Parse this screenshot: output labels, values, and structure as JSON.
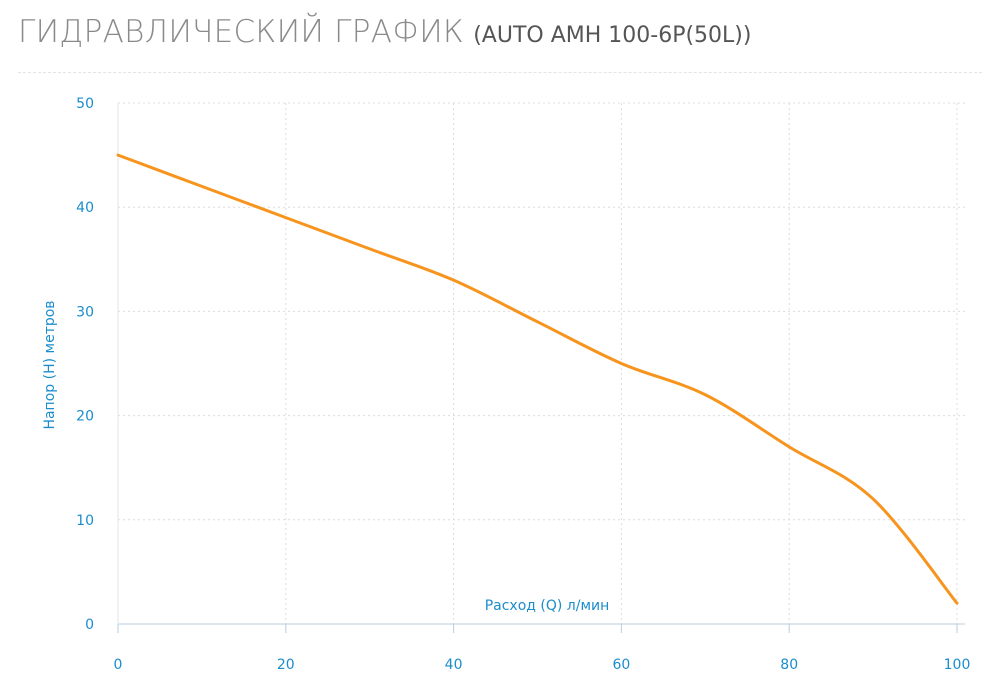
{
  "header": {
    "title": "ГИДРАВЛИЧЕСКИЙ ГРАФИК",
    "model": "(AUTO AMH 100-6P(50L))"
  },
  "colors": {
    "axis_text": "#1b8dcc",
    "line": "#f7941d",
    "grid": "#dcdcdc",
    "title": "#8a8a8a"
  },
  "chart_data": {
    "type": "line",
    "title": "ГИДРАВЛИЧЕСКИЙ ГРАФИК",
    "subtitle": "(AUTO AMH 100-6P(50L))",
    "xlabel": "Расход (Q) л/мин",
    "ylabel": "Напор (H) метров",
    "xlim": [
      0,
      100
    ],
    "ylim": [
      0,
      50
    ],
    "xticks": [
      0,
      20,
      40,
      60,
      80,
      100
    ],
    "yticks": [
      0,
      10,
      20,
      30,
      40,
      50
    ],
    "grid": true,
    "series": [
      {
        "x": [
          0,
          10,
          20,
          30,
          40,
          50,
          60,
          70,
          80,
          90,
          100
        ],
        "values": [
          45,
          42,
          39,
          36,
          33,
          29,
          25,
          22,
          17,
          12,
          2
        ]
      }
    ]
  }
}
